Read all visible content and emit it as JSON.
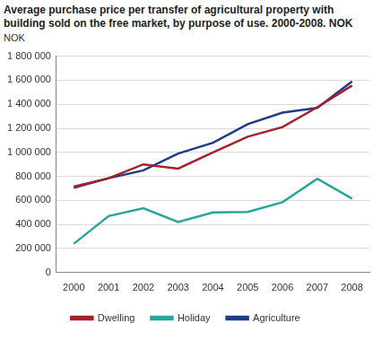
{
  "chart_data": {
    "type": "line",
    "title": "Average purchase price per transfer of agricultural property with building sold on the free market, by purpose of use. 2000-2008. NOK",
    "y_label": "NOK",
    "categories": [
      "2000",
      "2001",
      "2002",
      "2003",
      "2004",
      "2005",
      "2006",
      "2007",
      "2008"
    ],
    "series": [
      {
        "name": "Dwelling",
        "color": "#a3222b",
        "values": [
          715000,
          785000,
          900000,
          865000,
          1000000,
          1130000,
          1210000,
          1375000,
          1555000
        ]
      },
      {
        "name": "Holiday",
        "color": "#2aa59c",
        "values": [
          240000,
          470000,
          535000,
          420000,
          500000,
          505000,
          585000,
          780000,
          615000
        ]
      },
      {
        "name": "Agriculture",
        "color": "#1f3c88",
        "values": [
          705000,
          785000,
          850000,
          990000,
          1080000,
          1235000,
          1330000,
          1370000,
          1590000
        ]
      }
    ],
    "ylim": [
      0,
      1800000
    ],
    "yticks": [
      0,
      {
        "value": 200000,
        "label": "200 000"
      },
      {
        "value": 400000,
        "label": "400 000"
      },
      {
        "value": 600000,
        "label": "600 000"
      },
      {
        "value": 800000,
        "label": "800 000"
      },
      {
        "value": 1000000,
        "label": "1 000 000"
      },
      {
        "value": 1200000,
        "label": "1 200 000"
      },
      {
        "value": 1400000,
        "label": "1 400 000"
      },
      {
        "value": 1600000,
        "label": "1 600 000"
      },
      {
        "value": 1800000,
        "label": "1 800 000"
      }
    ],
    "grid": true,
    "legend": "bottom"
  }
}
